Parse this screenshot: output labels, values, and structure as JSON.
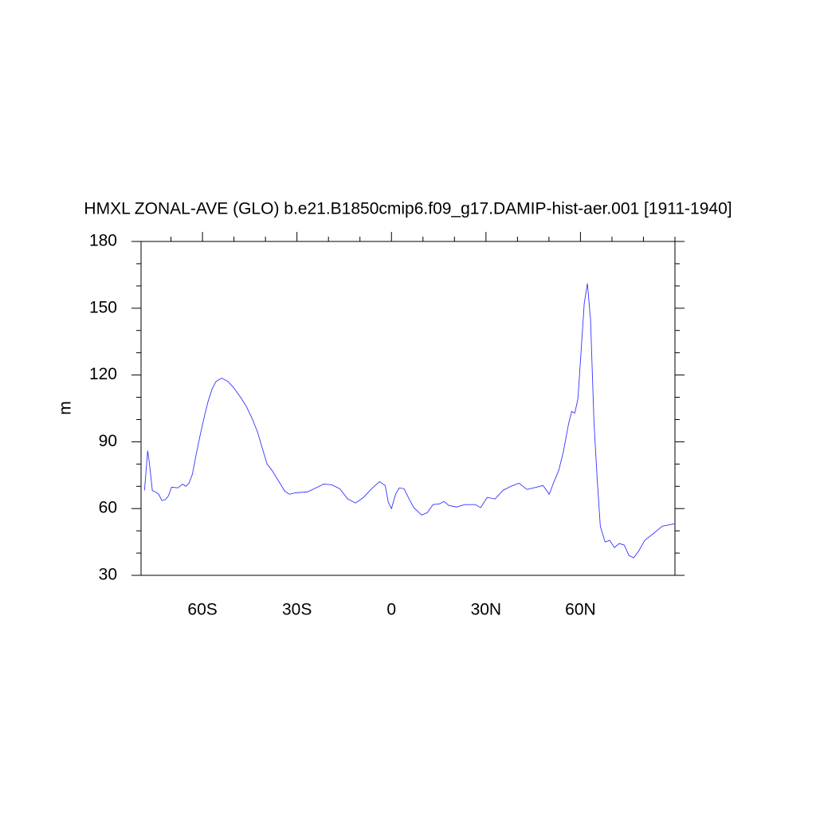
{
  "chart_data": {
    "type": "line",
    "title": "HMXL ZONAL-AVE (GLO) b.e21.B1850cmip6.f09_g17.DAMIP-hist-aer.001 [1911-1940]",
    "y_label": "m",
    "xlim": [
      -79.5,
      90
    ],
    "ylim": [
      30,
      180
    ],
    "xticks": [
      {
        "value": -60,
        "label": "60S"
      },
      {
        "value": -30,
        "label": "30S"
      },
      0,
      {
        "value": 30,
        "label": "30N"
      },
      {
        "value": 60,
        "label": "60N"
      }
    ],
    "yticks": [
      30,
      60,
      90,
      120,
      150,
      180
    ],
    "xminorticks": [
      -70,
      -50,
      -40,
      -20,
      -10,
      10,
      20,
      40,
      50,
      70,
      80,
      90
    ],
    "yminorticks": [
      40,
      50,
      70,
      80,
      100,
      110,
      130,
      140,
      160,
      170
    ],
    "x": [
      -78.4,
      -77.4,
      -76.9,
      -75.9,
      -74.9,
      -73.9,
      -72.9,
      -71.8,
      -70.8,
      -69.8,
      -67.8,
      -66.3,
      -65.3,
      -64.3,
      -63.2,
      -62,
      -60.7,
      -59.4,
      -58.2,
      -56.9,
      -55.7,
      -53.9,
      -51.9,
      -50.1,
      -48.1,
      -46,
      -44.3,
      -42.5,
      -41,
      -39.5,
      -37.9,
      -35.9,
      -33.9,
      -32.4,
      -30.4,
      -26.6,
      -24,
      -21.5,
      -19,
      -16.4,
      -13.9,
      -11.4,
      -8.9,
      -6.3,
      -3.8,
      -2,
      -1,
      0,
      1.3,
      2.5,
      4,
      5.6,
      7.1,
      9.6,
      11.4,
      13.2,
      15.2,
      16.7,
      18.2,
      20.7,
      23.3,
      26.6,
      28.3,
      30.4,
      32.9,
      35.4,
      37.9,
      40.5,
      43,
      46,
      48.1,
      50.1,
      51.6,
      53.1,
      54.6,
      56.2,
      57.2,
      58.2,
      59.2,
      60.2,
      61.2,
      62.2,
      63.2,
      64.3,
      65.3,
      66.3,
      67.8,
      69.3,
      70.8,
      72.3,
      73.9,
      75.4,
      76.9,
      78.4,
      80.4,
      83,
      86,
      90
    ],
    "series": [
      {
        "name": "HMXL",
        "color": "#3333ff",
        "values": [
          68.2,
          86,
          81,
          68,
          67.5,
          66.4,
          63.6,
          64,
          65.7,
          69.6,
          69.3,
          71,
          70,
          71.4,
          75.4,
          84.3,
          93.2,
          101.4,
          108.2,
          113.9,
          117.1,
          118.6,
          117.1,
          114.3,
          110.4,
          105.7,
          100.7,
          94.3,
          87.1,
          80,
          77.1,
          72.5,
          67.9,
          66.4,
          67.1,
          67.5,
          69.3,
          71,
          70.7,
          68.9,
          64.3,
          62.5,
          65,
          68.9,
          72.1,
          70.4,
          62.9,
          60,
          66.4,
          69.3,
          68.9,
          64.3,
          60.4,
          57.1,
          58.2,
          61.8,
          62.1,
          63.2,
          61.4,
          60.7,
          61.8,
          61.8,
          60.4,
          65,
          64.3,
          68.2,
          70,
          71.4,
          68.6,
          69.6,
          70.4,
          66.4,
          72.1,
          77.1,
          85.7,
          97.9,
          103.6,
          102.9,
          109.3,
          130.7,
          152.1,
          161.1,
          145,
          98.6,
          73.6,
          52.1,
          45,
          45.7,
          42.5,
          44.3,
          43.6,
          38.9,
          37.9,
          40.7,
          45.7,
          48.6,
          52.1,
          53.2
        ]
      }
    ]
  }
}
